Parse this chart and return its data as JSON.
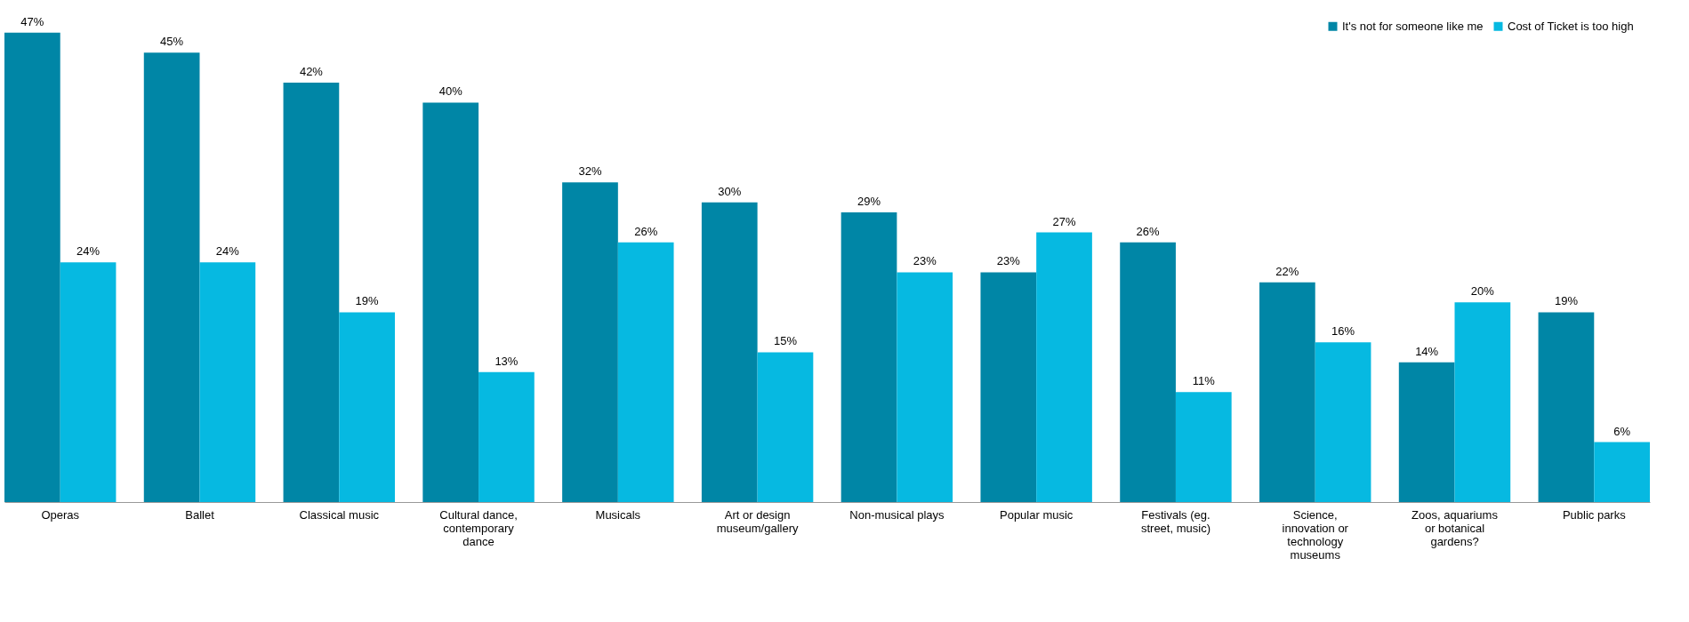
{
  "chart_data": {
    "type": "bar",
    "categories": [
      "Operas",
      "Ballet",
      "Classical music",
      "Cultural dance, contemporary dance",
      "Musicals",
      "Art or design museum/gallery",
      "Non-musical plays",
      "Popular music",
      "Festivals (eg. street, music)",
      "Science, innovation or technology museums",
      "Zoos, aquariums or botanical gardens?",
      "Public parks"
    ],
    "series": [
      {
        "name": "It's not for someone like me",
        "color": "#0086a6",
        "values": [
          47,
          45,
          42,
          40,
          32,
          30,
          29,
          23,
          26,
          22,
          14,
          19
        ],
        "value_labels": [
          "47%",
          "45%",
          "42%",
          "40%",
          "32%",
          "30%",
          "29%",
          "23%",
          "26%",
          "22%",
          "14%",
          "19%"
        ]
      },
      {
        "name": "Cost of Ticket is too high",
        "color": "#06b9e1",
        "values": [
          24,
          24,
          19,
          13,
          26,
          15,
          23,
          27,
          11,
          16,
          20,
          6
        ],
        "value_labels": [
          "24%",
          "24%",
          "19%",
          "13%",
          "26%",
          "15%",
          "23%",
          "27%",
          "11%",
          "16%",
          "20%",
          "6%"
        ]
      }
    ],
    "legend": "top right",
    "grid": false
  }
}
